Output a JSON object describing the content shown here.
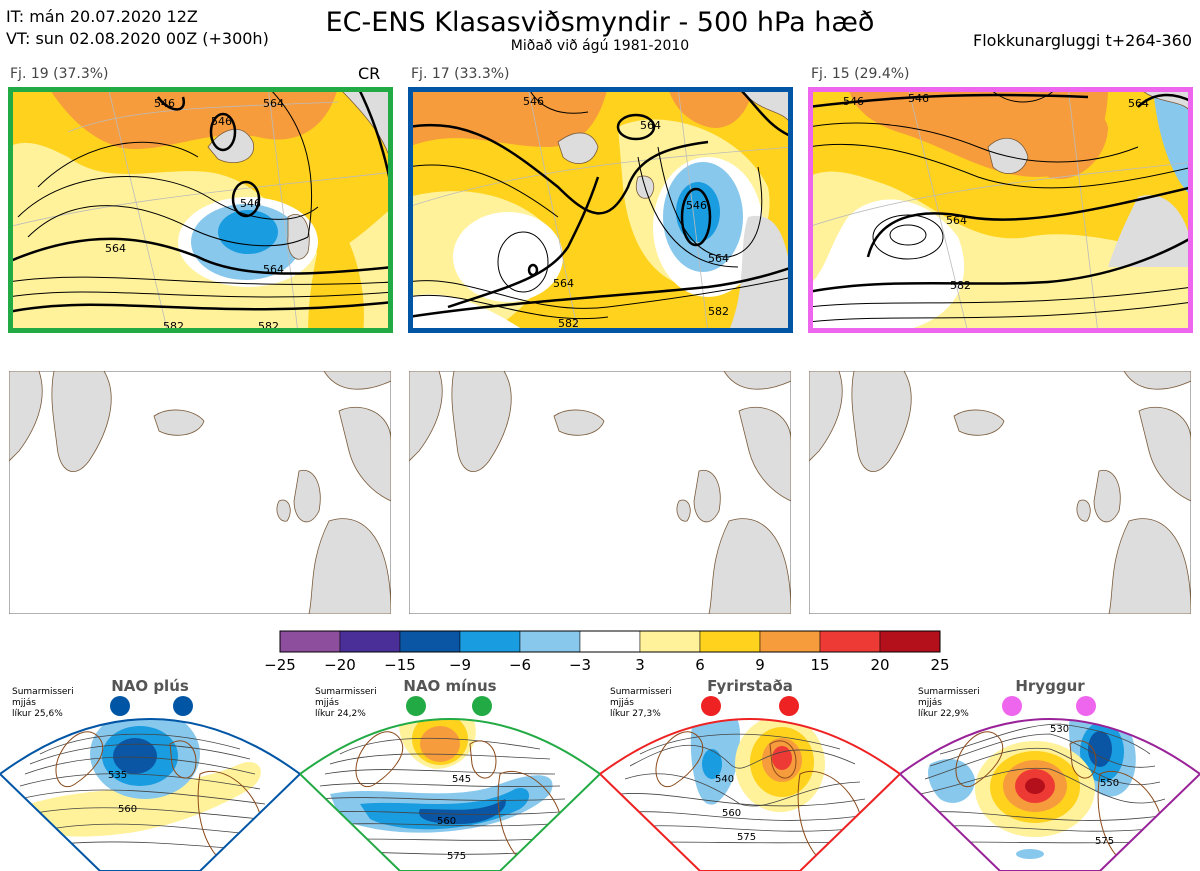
{
  "header": {
    "it_line": "IT: mán 20.07.2020 12Z",
    "vt_line": "VT: sun 02.08.2020 00Z  (+300h)",
    "title": "EC-ENS Klasasviðsmyndir - 500 hPa hæð",
    "subtitle": "Miðað við ágú 1981-2010",
    "window": "Flokkunargluggi t+264-360"
  },
  "clusters": [
    {
      "label": "Fj. 19 (37.3%)",
      "frame_color": "#22aa44",
      "flag": "CR",
      "contour_labels": [
        "546",
        "546",
        "546",
        "564",
        "564",
        "582",
        "582",
        "564"
      ]
    },
    {
      "label": "Fj. 17 (33.3%)",
      "frame_color": "#0055a5",
      "flag": "",
      "contour_labels": [
        "546",
        "564",
        "564",
        "582",
        "582",
        "546",
        "564"
      ]
    },
    {
      "label": "Fj. 15 (29.4%)",
      "frame_color": "#ee66ee",
      "flag": "",
      "contour_labels": [
        "546",
        "546",
        "564",
        "582",
        "564"
      ]
    }
  ],
  "colorbar": {
    "ticks": [
      "−25",
      "−20",
      "−15",
      "−9",
      "−6",
      "−3",
      "3",
      "6",
      "9",
      "15",
      "20",
      "25"
    ],
    "colors": [
      "#8e4e9e",
      "#4a2f98",
      "#0a56a4",
      "#1a9ce0",
      "#88c8ec",
      "#ffffff",
      "#fff29a",
      "#ffd21e",
      "#f79c3c",
      "#ee3a34",
      "#b3101c"
    ]
  },
  "regimes": [
    {
      "name": "NAO plús",
      "color": "#0055a5",
      "season": "Sumarmisseri",
      "freq_label": "mjjás",
      "prob": "líkur 25,6%",
      "contours": [
        "535",
        "560"
      ]
    },
    {
      "name": "NAO mínus",
      "color": "#22aa44",
      "season": "Sumarmisseri",
      "freq_label": "mjjás",
      "prob": "líkur 24,2%",
      "contours": [
        "545",
        "560",
        "575"
      ]
    },
    {
      "name": "Fyrirstaða",
      "color": "#ee2222",
      "season": "Sumarmisseri",
      "freq_label": "mjjás",
      "prob": "líkur 27,3%",
      "contours": [
        "540",
        "560",
        "575"
      ]
    },
    {
      "name": "Hryggur",
      "color": "#992299",
      "season": "Sumarmisseri",
      "freq_label": "mjjás",
      "prob": "líkur 22,9%",
      "contours": [
        "530",
        "550",
        "575"
      ]
    }
  ]
}
